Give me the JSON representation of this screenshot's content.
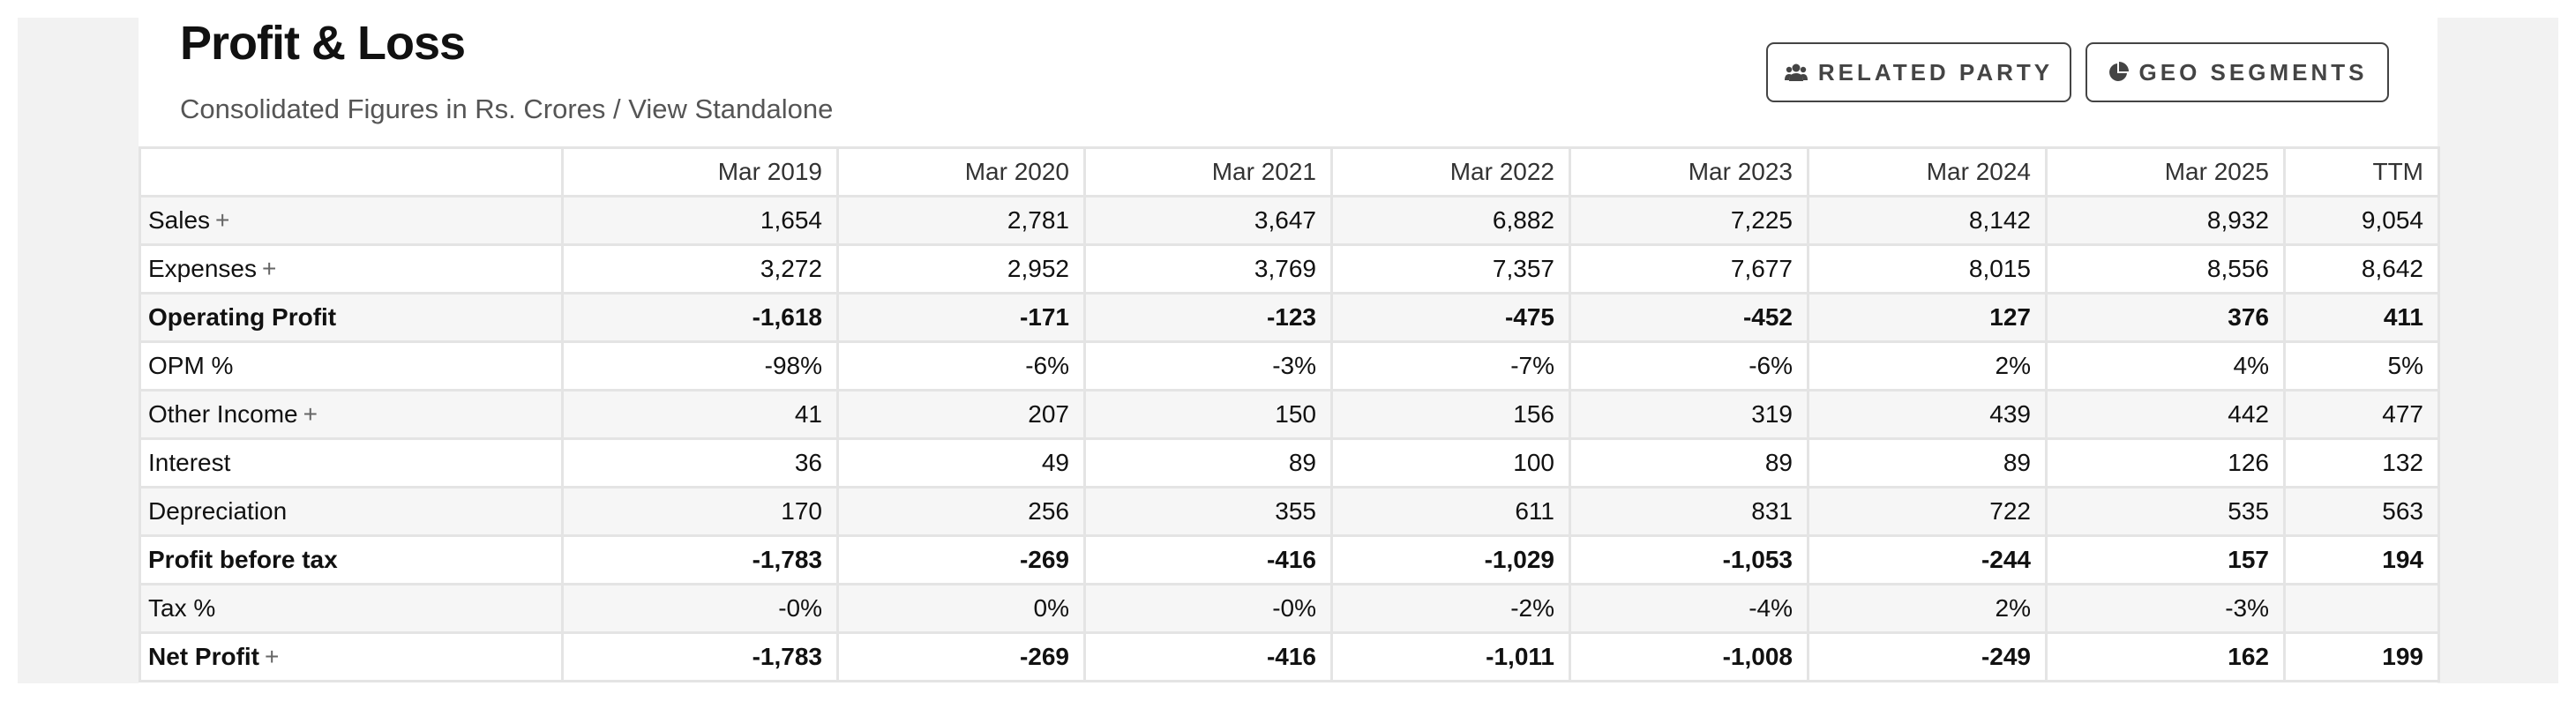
{
  "header": {
    "title": "Profit & Loss",
    "subtitle_prefix": "Consolidated Figures in Rs. Crores / ",
    "subtitle_link": "View Standalone"
  },
  "buttons": {
    "related_party": "RELATED PARTY",
    "geo_segments": "GEO SEGMENTS"
  },
  "table": {
    "columns": [
      "",
      "Mar 2019",
      "Mar 2020",
      "Mar 2021",
      "Mar 2022",
      "Mar 2023",
      "Mar 2024",
      "Mar 2025",
      "TTM"
    ],
    "rows": [
      {
        "label": "Sales",
        "plus": "+",
        "bold": false,
        "values": [
          "1,654",
          "2,781",
          "3,647",
          "6,882",
          "7,225",
          "8,142",
          "8,932",
          "9,054"
        ]
      },
      {
        "label": "Expenses",
        "plus": "+",
        "bold": false,
        "values": [
          "3,272",
          "2,952",
          "3,769",
          "7,357",
          "7,677",
          "8,015",
          "8,556",
          "8,642"
        ]
      },
      {
        "label": "Operating Profit",
        "plus": "",
        "bold": true,
        "values": [
          "-1,618",
          "-171",
          "-123",
          "-475",
          "-452",
          "127",
          "376",
          "411"
        ]
      },
      {
        "label": "OPM %",
        "plus": "",
        "bold": false,
        "values": [
          "-98%",
          "-6%",
          "-3%",
          "-7%",
          "-6%",
          "2%",
          "4%",
          "5%"
        ]
      },
      {
        "label": "Other Income",
        "plus": "+",
        "bold": false,
        "values": [
          "41",
          "207",
          "150",
          "156",
          "319",
          "439",
          "442",
          "477"
        ]
      },
      {
        "label": "Interest",
        "plus": "",
        "bold": false,
        "values": [
          "36",
          "49",
          "89",
          "100",
          "89",
          "89",
          "126",
          "132"
        ]
      },
      {
        "label": "Depreciation",
        "plus": "",
        "bold": false,
        "values": [
          "170",
          "256",
          "355",
          "611",
          "831",
          "722",
          "535",
          "563"
        ]
      },
      {
        "label": "Profit before tax",
        "plus": "",
        "bold": true,
        "values": [
          "-1,783",
          "-269",
          "-416",
          "-1,029",
          "-1,053",
          "-244",
          "157",
          "194"
        ]
      },
      {
        "label": "Tax %",
        "plus": "",
        "bold": false,
        "values": [
          "-0%",
          "0%",
          "-0%",
          "-2%",
          "-4%",
          "2%",
          "-3%",
          ""
        ]
      },
      {
        "label": "Net Profit",
        "plus": "+",
        "bold": true,
        "values": [
          "-1,783",
          "-269",
          "-416",
          "-1,011",
          "-1,008",
          "-249",
          "162",
          "199"
        ]
      }
    ]
  }
}
